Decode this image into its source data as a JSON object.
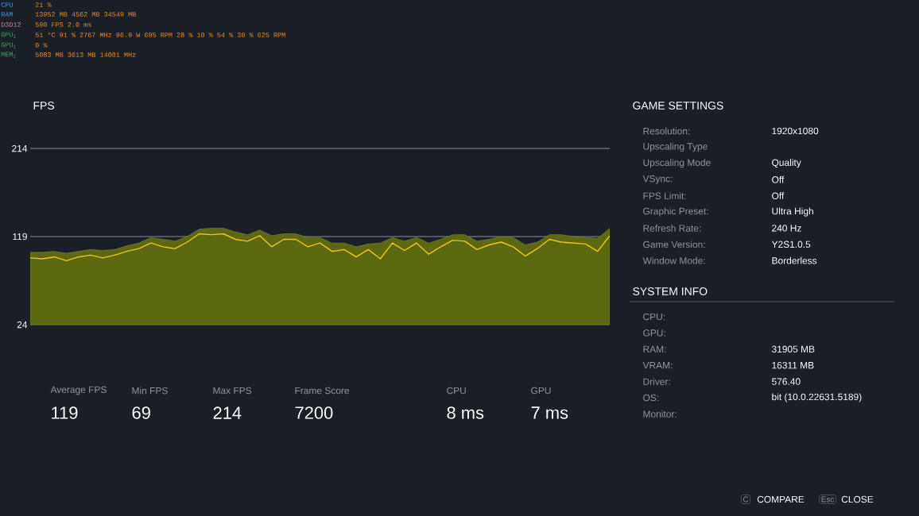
{
  "chart_data": {
    "type": "area",
    "title": "FPS",
    "categories": [
      null,
      null,
      null,
      null,
      null,
      null,
      null,
      null,
      null,
      null,
      null,
      null,
      null,
      null,
      null,
      null,
      null,
      null,
      null,
      null,
      null,
      null,
      null,
      null,
      null,
      null,
      null,
      null,
      null,
      null,
      null,
      null,
      null,
      null,
      null,
      null,
      null,
      null,
      null,
      null,
      null,
      null,
      null,
      null,
      null,
      null,
      null,
      null,
      null
    ],
    "series": [
      {
        "color": "#5c6810",
        "values": [
          102,
          102,
          103,
          101,
          103,
          105,
          104,
          105,
          109,
          112,
          118,
          116,
          114,
          119,
          127,
          128,
          128,
          124,
          121,
          126,
          120,
          122,
          122,
          118,
          118,
          112,
          112,
          108,
          111,
          112,
          118,
          114,
          118,
          112,
          116,
          121,
          121,
          114,
          116,
          119,
          118,
          110,
          113,
          121,
          121,
          119,
          118,
          117,
          128
        ]
      },
      {
        "type": "line",
        "color": "#f0c419",
        "values": [
          96,
          95,
          97,
          93,
          97,
          99,
          96,
          99,
          103,
          106,
          112,
          108,
          106,
          113,
          122,
          121,
          122,
          116,
          114,
          120,
          108,
          116,
          116,
          108,
          112,
          103,
          105,
          97,
          105,
          95,
          112,
          104,
          112,
          100,
          108,
          115,
          114,
          105,
          110,
          113,
          108,
          98,
          106,
          116,
          113,
          112,
          111,
          103,
          120
        ]
      }
    ],
    "ylim": [
      24,
      214
    ],
    "yticks": [
      24,
      119,
      214
    ],
    "grid": "y",
    "annotations": [
      "Average FPS",
      "119",
      "Min FPS",
      "69",
      "Max FPS",
      "214",
      "Frame Score",
      "7200",
      "CPU",
      "8 ms",
      "GPU",
      "7 ms",
      "GAME SETTINGS",
      "Resolution:",
      "1920x1080",
      "Upscaling Type",
      "Upscaling Mode",
      "Quality",
      "VSync:",
      "Off",
      "FPS Limit:",
      "Off",
      "Graphic Preset:",
      "Ultra High",
      "Refresh Rate:",
      "240 Hz",
      "Game Version:",
      "Y2S1.0.5",
      "Window Mode:",
      "Borderless",
      "SYSTEM INFO",
      "CPU:",
      "GPU:",
      "RAM:",
      "31905 MB",
      "VRAM:",
      "16311 MB",
      "Driver:",
      "576.40",
      "OS:",
      "bit (10.0.22631.5189)",
      "Monitor:",
      "C",
      "COMPARE",
      "Esc",
      "CLOSE",
      "CPU",
      "21 %",
      "RAM",
      "13952 MB  4562 MB  34549 MB",
      "D3D12",
      "590 FPS  2.0 ms",
      "GPU$_{1}$",
      "51 °C  91 %  2767 MHz  96.9 W  695 RPM  28 %  10 %  54 %  30 %  625 RPM",
      "GPU$_{1}$",
      "0 %",
      "MEM$_{2}$",
      "5083 MB  3613 MB  14001 MHz"
    ]
  }
}
